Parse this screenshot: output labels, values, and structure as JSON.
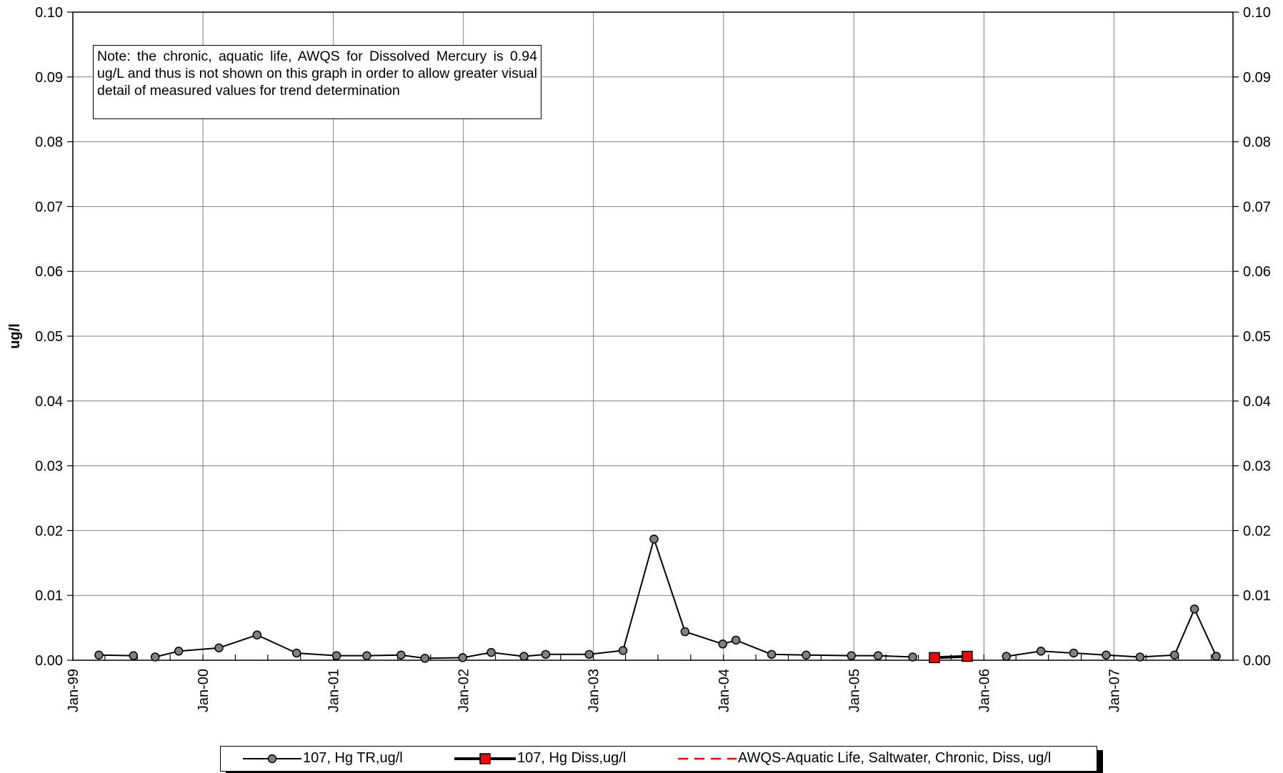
{
  "chart_data": {
    "type": "line",
    "title": "",
    "xlabel": "",
    "ylabel": "ug/l",
    "x_axis": {
      "min": "1999-01-01",
      "max": "2007-12-01",
      "ticks": [
        "1999-01-01",
        "2000-01-01",
        "2001-01-01",
        "2002-01-01",
        "2003-01-01",
        "2004-01-01",
        "2005-01-01",
        "2006-01-01",
        "2007-01-01"
      ],
      "tick_labels": [
        "Jan-99",
        "Jan-00",
        "Jan-01",
        "Jan-02",
        "Jan-03",
        "Jan-04",
        "Jan-05",
        "Jan-06",
        "Jan-07"
      ],
      "minor_tick_interval_months": 3
    },
    "ylim": [
      0,
      0.1
    ],
    "y_ticks": [
      0.0,
      0.01,
      0.02,
      0.03,
      0.04,
      0.05,
      0.06,
      0.07,
      0.08,
      0.09,
      0.1
    ],
    "y_tick_labels": [
      "0.00",
      "0.01",
      "0.02",
      "0.03",
      "0.04",
      "0.05",
      "0.06",
      "0.07",
      "0.08",
      "0.09",
      "0.10"
    ],
    "secondary_y_axis": true,
    "grid": "vertical at year ticks, horizontal at y ticks",
    "legend_position": "bottom",
    "series": [
      {
        "name": "107, Hg TR,ug/l",
        "color": "#000000",
        "marker": "circle",
        "marker_fill": "#808080",
        "segments": [
          [
            {
              "x": "1999-03-15",
              "y": 0.0008
            },
            {
              "x": "1999-06-20",
              "y": 0.0007
            }
          ],
          [
            {
              "x": "1999-08-20",
              "y": 0.0005
            },
            {
              "x": "1999-10-25",
              "y": 0.0014
            },
            {
              "x": "2000-02-15",
              "y": 0.0019
            },
            {
              "x": "2000-06-01",
              "y": 0.0039
            },
            {
              "x": "2000-09-20",
              "y": 0.0011
            },
            {
              "x": "2001-01-10",
              "y": 0.0007
            },
            {
              "x": "2001-04-05",
              "y": 0.0007
            },
            {
              "x": "2001-07-10",
              "y": 0.0008
            },
            {
              "x": "2001-09-15",
              "y": 0.0003
            },
            {
              "x": "2001-12-30",
              "y": 0.0004
            },
            {
              "x": "2002-03-20",
              "y": 0.0012
            },
            {
              "x": "2002-06-20",
              "y": 0.0006
            },
            {
              "x": "2002-08-20",
              "y": 0.0009
            },
            {
              "x": "2002-12-20",
              "y": 0.0009
            },
            {
              "x": "2003-03-25",
              "y": 0.0015
            },
            {
              "x": "2003-06-20",
              "y": 0.0187
            },
            {
              "x": "2003-09-15",
              "y": 0.0044
            },
            {
              "x": "2003-12-30",
              "y": 0.0025
            },
            {
              "x": "2004-02-05",
              "y": 0.0031
            },
            {
              "x": "2004-05-15",
              "y": 0.0009
            },
            {
              "x": "2004-08-20",
              "y": 0.0008
            },
            {
              "x": "2004-12-25",
              "y": 0.0007
            },
            {
              "x": "2005-03-10",
              "y": 0.0007
            },
            {
              "x": "2005-06-15",
              "y": 0.0005
            }
          ],
          [
            {
              "x": "2006-03-05",
              "y": 0.0006
            },
            {
              "x": "2006-06-10",
              "y": 0.0014
            },
            {
              "x": "2006-09-10",
              "y": 0.0011
            },
            {
              "x": "2006-12-10",
              "y": 0.0008
            },
            {
              "x": "2007-03-15",
              "y": 0.0005
            },
            {
              "x": "2007-06-20",
              "y": 0.0008
            },
            {
              "x": "2007-08-15",
              "y": 0.0079
            },
            {
              "x": "2007-10-15",
              "y": 0.0006
            }
          ]
        ]
      },
      {
        "name": "107, Hg Diss,ug/l",
        "color": "#000000",
        "marker": "square",
        "marker_fill": "#ff0000",
        "segments": [
          [
            {
              "x": "2005-08-15",
              "y": 0.0004
            },
            {
              "x": "2005-11-15",
              "y": 0.0006
            }
          ]
        ]
      },
      {
        "name": "AWQS-Aquatic Life, Saltwater, Chronic, Diss, ug/l",
        "color": "#ff0000",
        "line_style": "dashed",
        "segments": []
      }
    ],
    "annotation": "Note: the chronic, aquatic life, AWQS for Dissolved Mercury  is 0.94 ug/L and thus is not shown on this graph in order to allow greater visual detail of measured values for trend determination"
  }
}
